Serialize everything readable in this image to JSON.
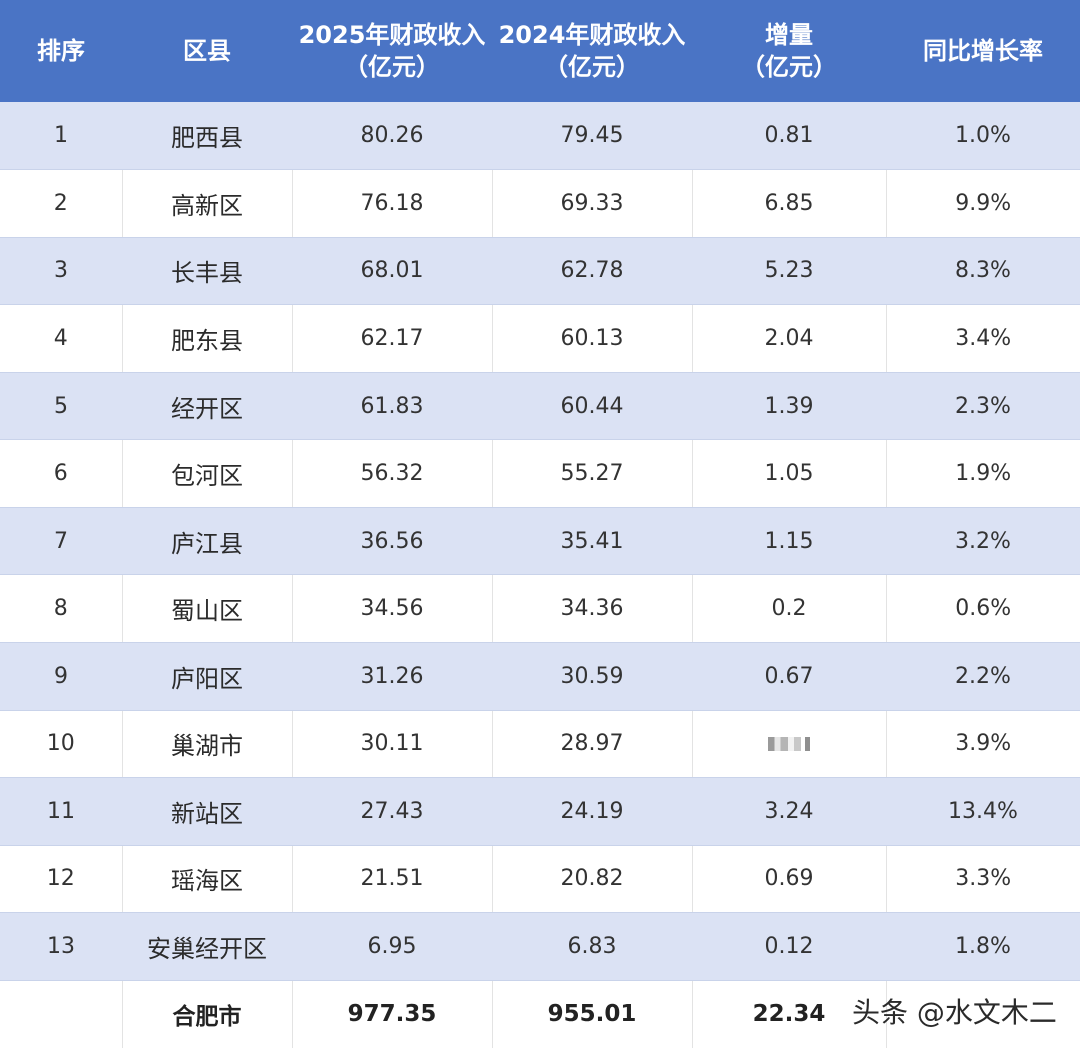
{
  "headers": {
    "rank": "排序",
    "district": "区县",
    "rev2025_line1": "2025年财政收入",
    "rev2025_line2": "（亿元）",
    "rev2024_line1": "2024年财政收入",
    "rev2024_line2": "（亿元）",
    "increase_line1": "增量",
    "increase_line2": "（亿元）",
    "yoy": "同比增长率"
  },
  "rows": [
    {
      "rank": "1",
      "district": "肥西县",
      "rev2025": "80.26",
      "rev2024": "79.45",
      "increase": "0.81",
      "yoy": "1.0%"
    },
    {
      "rank": "2",
      "district": "高新区",
      "rev2025": "76.18",
      "rev2024": "69.33",
      "increase": "6.85",
      "yoy": "9.9%"
    },
    {
      "rank": "3",
      "district": "长丰县",
      "rev2025": "68.01",
      "rev2024": "62.78",
      "increase": "5.23",
      "yoy": "8.3%"
    },
    {
      "rank": "4",
      "district": "肥东县",
      "rev2025": "62.17",
      "rev2024": "60.13",
      "increase": "2.04",
      "yoy": "3.4%"
    },
    {
      "rank": "5",
      "district": "经开区",
      "rev2025": "61.83",
      "rev2024": "60.44",
      "increase": "1.39",
      "yoy": "2.3%"
    },
    {
      "rank": "6",
      "district": "包河区",
      "rev2025": "56.32",
      "rev2024": "55.27",
      "increase": "1.05",
      "yoy": "1.9%"
    },
    {
      "rank": "7",
      "district": "庐江县",
      "rev2025": "36.56",
      "rev2024": "35.41",
      "increase": "1.15",
      "yoy": "3.2%"
    },
    {
      "rank": "8",
      "district": "蜀山区",
      "rev2025": "34.56",
      "rev2024": "34.36",
      "increase": "0.2",
      "yoy": "0.6%"
    },
    {
      "rank": "9",
      "district": "庐阳区",
      "rev2025": "31.26",
      "rev2024": "30.59",
      "increase": "0.67",
      "yoy": "2.2%"
    },
    {
      "rank": "10",
      "district": "巢湖市",
      "rev2025": "30.11",
      "rev2024": "28.97",
      "increase": "",
      "yoy": "3.9%"
    },
    {
      "rank": "11",
      "district": "新站区",
      "rev2025": "27.43",
      "rev2024": "24.19",
      "increase": "3.24",
      "yoy": "13.4%"
    },
    {
      "rank": "12",
      "district": "瑶海区",
      "rev2025": "21.51",
      "rev2024": "20.82",
      "increase": "0.69",
      "yoy": "3.3%"
    },
    {
      "rank": "13",
      "district": "安巢经开区",
      "rev2025": "6.95",
      "rev2024": "6.83",
      "increase": "0.12",
      "yoy": "1.8%"
    }
  ],
  "total": {
    "rank": "",
    "district": "合肥市",
    "rev2025": "977.35",
    "rev2024": "955.01",
    "increase": "22.34",
    "yoy": ""
  },
  "watermark": "头条 @水文木二"
}
